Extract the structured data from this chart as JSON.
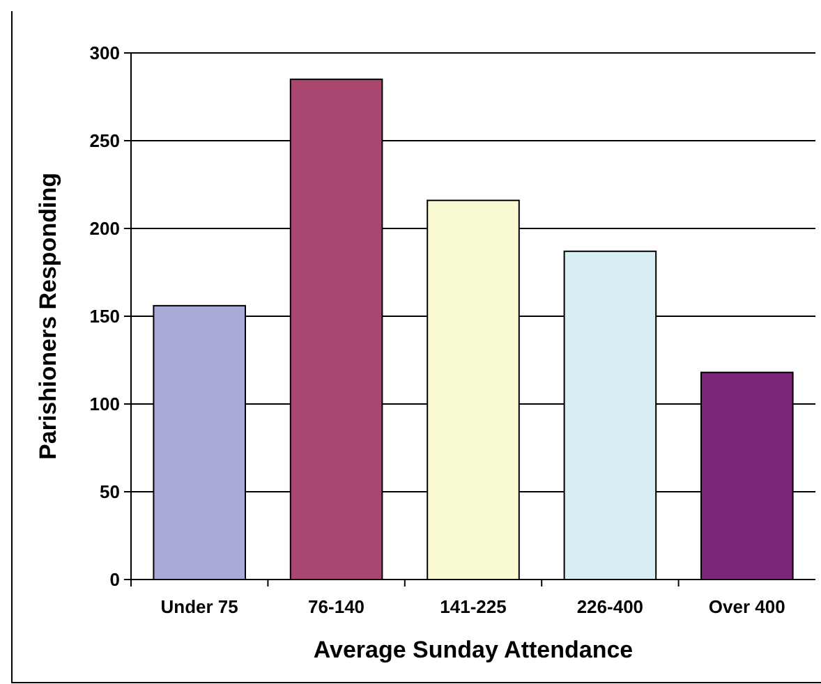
{
  "chart_data": {
    "type": "bar",
    "xlabel": "Average Sunday Attendance",
    "ylabel": "Parishioners Responding",
    "categories": [
      "Under 75",
      "76-140",
      "141-225",
      "226-400",
      "Over 400"
    ],
    "values": [
      156,
      285,
      216,
      187,
      118
    ],
    "colors": [
      "#aaaad6",
      "#a8476f",
      "#fafad2",
      "#d8eef4",
      "#7b2676"
    ],
    "ylim": [
      0,
      300
    ],
    "yticks": [
      0,
      50,
      100,
      150,
      200,
      250,
      300
    ],
    "grid": "y"
  }
}
